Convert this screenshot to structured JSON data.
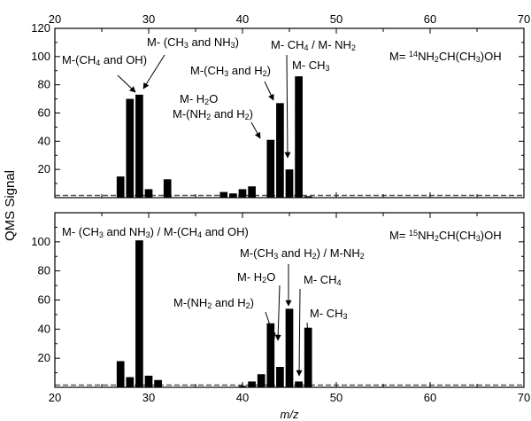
{
  "chart_data": [
    {
      "type": "bar",
      "panel": "top",
      "xlim": [
        20,
        70
      ],
      "ylim": [
        0,
        120
      ],
      "x_ticks": [
        20,
        30,
        40,
        50,
        60,
        70
      ],
      "y_ticks": [
        20,
        40,
        60,
        80,
        100,
        120
      ],
      "grid": false,
      "x": [
        27,
        28,
        29,
        30,
        32,
        38,
        39,
        40,
        41,
        43,
        44,
        45,
        46,
        47
      ],
      "values": [
        15,
        70,
        73,
        6,
        13,
        4,
        3,
        6,
        8,
        41,
        67,
        20,
        86,
        1
      ],
      "baseline": "dashed",
      "annotations": [
        {
          "parts": [
            [
              "M-(CH",
              ""
            ],
            [
              "4",
              "sub"
            ],
            [
              " and OH)",
              ""
            ]
          ],
          "points_to_x": 28
        },
        {
          "parts": [
            [
              "M- (CH",
              ""
            ],
            [
              "3",
              "sub"
            ],
            [
              " and NH",
              ""
            ],
            [
              "3",
              "sub"
            ],
            [
              ")",
              ""
            ]
          ],
          "points_to_x": 29
        },
        {
          "parts": [
            [
              "M- CH",
              ""
            ],
            [
              "4",
              "sub"
            ],
            [
              " / M- NH",
              ""
            ],
            [
              "2",
              "sub"
            ]
          ],
          "points_to_x": 45
        },
        {
          "parts": [
            [
              "M-(CH",
              ""
            ],
            [
              "3",
              "sub"
            ],
            [
              " and H",
              ""
            ],
            [
              "2",
              "sub"
            ],
            [
              ")",
              ""
            ]
          ],
          "points_to_x": 44
        },
        {
          "parts": [
            [
              "M- CH",
              ""
            ],
            [
              "3",
              "sub"
            ]
          ],
          "points_to_x": 46
        },
        {
          "parts": [
            [
              "M- H",
              ""
            ],
            [
              "2",
              "sub"
            ],
            [
              "O",
              ""
            ]
          ],
          "points_to_x": 43
        },
        {
          "parts": [
            [
              "M-(NH",
              ""
            ],
            [
              "2",
              "sub"
            ],
            [
              " and H",
              ""
            ],
            [
              "2",
              "sub"
            ],
            [
              ")",
              ""
            ]
          ],
          "points_to_x": 43
        },
        {
          "parts": [
            [
              "M= ",
              ""
            ],
            [
              "14",
              "sup"
            ],
            [
              "NH",
              ""
            ],
            [
              "2",
              "sub"
            ],
            [
              "CH(CH",
              ""
            ],
            [
              "3",
              "sub"
            ],
            [
              ")OH",
              ""
            ]
          ]
        }
      ]
    },
    {
      "type": "bar",
      "panel": "bottom",
      "xlim": [
        20,
        70
      ],
      "ylim": [
        0,
        120
      ],
      "x_ticks": [
        20,
        30,
        40,
        50,
        60,
        70
      ],
      "y_ticks": [
        20,
        40,
        60,
        80,
        100
      ],
      "grid": false,
      "x": [
        27,
        28,
        29,
        30,
        31,
        40,
        41,
        42,
        43,
        44,
        45,
        46,
        47
      ],
      "values": [
        18,
        7,
        101,
        8,
        5,
        1,
        4,
        9,
        44,
        14,
        54,
        4,
        41
      ],
      "baseline": "dashed",
      "xlabel": "m/z",
      "annotations": [
        {
          "parts": [
            [
              "M- (CH",
              ""
            ],
            [
              "3",
              "sub"
            ],
            [
              " and NH",
              ""
            ],
            [
              "3",
              "sub"
            ],
            [
              ") / M-(CH",
              ""
            ],
            [
              "4",
              "sub"
            ],
            [
              " and OH)",
              ""
            ]
          ]
        },
        {
          "parts": [
            [
              "M= ",
              ""
            ],
            [
              "15",
              "sup"
            ],
            [
              "NH",
              ""
            ],
            [
              "2",
              "sub"
            ],
            [
              "CH(CH",
              ""
            ],
            [
              "3",
              "sub"
            ],
            [
              ")OH",
              ""
            ]
          ]
        },
        {
          "parts": [
            [
              "M-(CH",
              ""
            ],
            [
              "3",
              "sub"
            ],
            [
              " and H",
              ""
            ],
            [
              "2",
              "sub"
            ],
            [
              ") / M-NH",
              ""
            ],
            [
              "2",
              "sub"
            ]
          ],
          "points_to_x": 45
        },
        {
          "parts": [
            [
              "M- H",
              ""
            ],
            [
              "2",
              "sub"
            ],
            [
              "O",
              ""
            ]
          ],
          "points_to_x": 44
        },
        {
          "parts": [
            [
              "M- CH",
              ""
            ],
            [
              "4",
              "sub"
            ]
          ],
          "points_to_x": 46
        },
        {
          "parts": [
            [
              "M-(NH",
              ""
            ],
            [
              "2",
              "sub"
            ],
            [
              " and H",
              ""
            ],
            [
              "2",
              "sub"
            ],
            [
              ")",
              ""
            ]
          ],
          "points_to_x": 44
        },
        {
          "parts": [
            [
              "M- CH",
              ""
            ],
            [
              "3",
              "sub"
            ]
          ],
          "points_to_x": 47
        }
      ]
    }
  ],
  "shared": {
    "ylabel": "QMS Signal"
  }
}
